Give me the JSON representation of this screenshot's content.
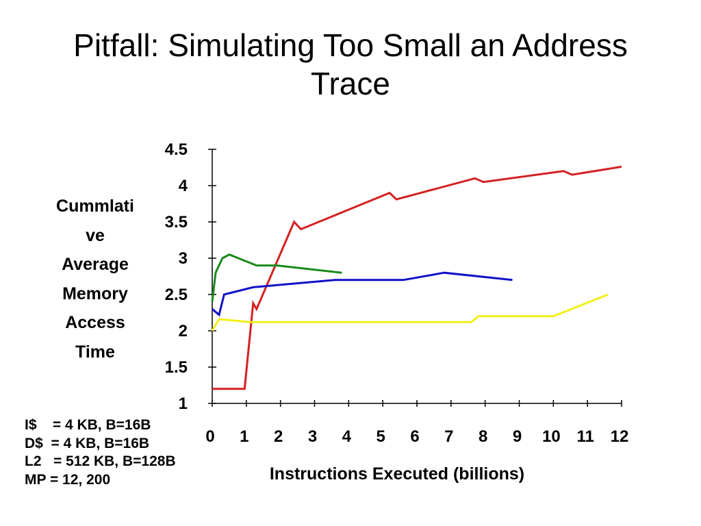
{
  "slide": {
    "title_lines": [
      "Pitfall: Simulating Too Small an Address",
      "Trace"
    ],
    "config_lines": [
      "I$    = 4 KB, B=16B",
      "D$  = 4 KB, B=16B",
      "L2   = 512 KB, B=128B",
      "MP = 12, 200"
    ]
  },
  "chart_data": {
    "type": "line",
    "title": "",
    "xlabel": "Instructions Executed (billions)",
    "ylabel_lines": [
      "Cummlati",
      "ve",
      "Average",
      "Memory",
      "Access",
      "Time"
    ],
    "xlim": [
      0,
      12
    ],
    "ylim": [
      1,
      4.5
    ],
    "x_ticks": [
      "0",
      "1",
      "2",
      "3",
      "4",
      "5",
      "6",
      "7",
      "8",
      "9",
      "10",
      "11",
      "12"
    ],
    "y_ticks": [
      "1",
      "1.5",
      "2",
      "2.5",
      "3",
      "3.5",
      "4",
      "4.5"
    ],
    "grid": false,
    "legend": "none",
    "series": [
      {
        "color": "#d42020",
        "points": [
          [
            0,
            1.2
          ],
          [
            0.95,
            1.2
          ],
          [
            1.2,
            2.38
          ],
          [
            1.3,
            2.3
          ],
          [
            2.4,
            3.5
          ],
          [
            2.6,
            3.4
          ],
          [
            5.2,
            3.9
          ],
          [
            5.4,
            3.81
          ],
          [
            7.7,
            4.1
          ],
          [
            7.95,
            4.05
          ],
          [
            10.3,
            4.2
          ],
          [
            10.55,
            4.15
          ],
          [
            12,
            4.26
          ]
        ]
      },
      {
        "color": "#1a8a1a",
        "points": [
          [
            0,
            2.4
          ],
          [
            0.1,
            2.8
          ],
          [
            0.3,
            3.0
          ],
          [
            0.5,
            3.05
          ],
          [
            1.3,
            2.9
          ],
          [
            1.9,
            2.9
          ],
          [
            3.8,
            2.8
          ]
        ]
      },
      {
        "color": "#1010c8",
        "points": [
          [
            0,
            2.3
          ],
          [
            0.2,
            2.22
          ],
          [
            0.35,
            2.5
          ],
          [
            1.2,
            2.6
          ],
          [
            3.6,
            2.7
          ],
          [
            5.6,
            2.7
          ],
          [
            6.8,
            2.8
          ],
          [
            8.8,
            2.7
          ]
        ]
      },
      {
        "color": "#f2ee1a",
        "points": [
          [
            0,
            2.0
          ],
          [
            0.2,
            2.16
          ],
          [
            1.1,
            2.12
          ],
          [
            7.6,
            2.12
          ],
          [
            7.8,
            2.2
          ],
          [
            10,
            2.2
          ],
          [
            11.6,
            2.5
          ]
        ]
      }
    ]
  }
}
